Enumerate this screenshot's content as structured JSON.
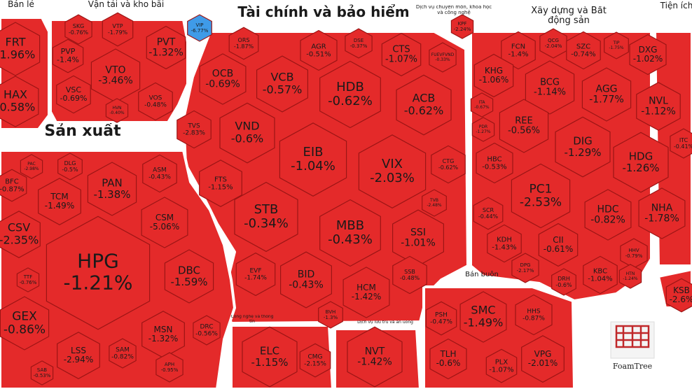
{
  "chart_data": {
    "type": "treemap",
    "color": "#e42a2a",
    "logo": "FoamTree",
    "groups": [
      {
        "name": "Bán lẻ",
        "categories": [
          "FRT",
          "HAX"
        ],
        "values": [
          -1.96,
          -0.58
        ],
        "value_labels": [
          "-1.96%",
          "-0.58%"
        ]
      },
      {
        "name": "Vận tải và kho bãi",
        "categories": [
          "SKG",
          "VTP",
          "PVP",
          "PVT",
          "VTO",
          "VSC",
          "VOS",
          "HVN",
          "VIP"
        ],
        "values": [
          -0.76,
          -1.79,
          -1.4,
          -1.32,
          -3.46,
          -0.69,
          -0.48,
          -0.4,
          -6.77
        ],
        "value_labels": [
          "-0.76%",
          "-1.79%",
          "-1.4%",
          "-1.32%",
          "-3.46%",
          "-0.69%",
          "-0.48%",
          "-0.40%",
          "-6.77%"
        ],
        "colors": [
          "#e42a2a",
          "#e42a2a",
          "#e42a2a",
          "#e42a2a",
          "#e42a2a",
          "#e42a2a",
          "#e42a2a",
          "#e42a2a",
          "#3f9be8"
        ]
      },
      {
        "name": "Tài chính và bảo hiểm",
        "categories": [
          "ORS",
          "AGR",
          "DSE",
          "CTS",
          "OCB",
          "VCB",
          "HDB",
          "ACB",
          "FUEVFVND",
          "VND",
          "EIB",
          "VIX",
          "CTG",
          "TVS",
          "FTS",
          "STB",
          "MBB",
          "SSI",
          "TVB",
          "EVF",
          "BID",
          "HCM",
          "SSB",
          "BVH"
        ],
        "values": [
          -1.87,
          -0.51,
          -0.37,
          -1.07,
          -0.69,
          -0.57,
          -0.62,
          -0.62,
          -0.33,
          -0.6,
          -1.04,
          -2.03,
          -0.62,
          -2.83,
          -1.15,
          -0.34,
          -0.43,
          -1.01,
          -2.48,
          -1.74,
          -0.43,
          -1.42,
          -0.48,
          -1.3
        ],
        "value_labels": [
          "-1.87%",
          "-0.51%",
          "-0.37%",
          "-1.07%",
          "-0.69%",
          "-0.57%",
          "-0.62%",
          "-0.62%",
          "-0.33%",
          "-0.6%",
          "-1.04%",
          "-2.03%",
          "-0.62%",
          "-2.83%",
          "-1.15%",
          "-0.34%",
          "-0.43%",
          "-1.01%",
          "-2.48%",
          "-1.74%",
          "-0.43%",
          "-1.42%",
          "-0.48%",
          "-1.3%"
        ]
      },
      {
        "name": "Dịch vụ chuyên môn, khoa học và công nghệ",
        "categories": [
          "KPF"
        ],
        "values": [
          -2.24
        ],
        "value_labels": [
          "-2.24%"
        ]
      },
      {
        "name": "Xây dựng và Bất động sản",
        "categories": [
          "FCN",
          "QCG",
          "SZC",
          "TIP",
          "DXG",
          "KHG",
          "BCG",
          "AGG",
          "NVL",
          "ITA",
          "REE",
          "PDR",
          "DIG",
          "HDG",
          "HBC",
          "PC1",
          "HDC",
          "NHA",
          "SCR",
          "KDH",
          "CII",
          "DPG",
          "KBC",
          "HHV",
          "DRH",
          "HTN"
        ],
        "values": [
          -1.4,
          -2.04,
          -0.74,
          -1.75,
          -1.02,
          -1.06,
          -1.14,
          -1.77,
          -1.12,
          -0.67,
          -0.56,
          -1.27,
          -1.29,
          -1.26,
          -0.53,
          -2.53,
          -0.82,
          -1.78,
          -0.44,
          -1.43,
          -0.61,
          -2.17,
          -1.04,
          -0.79,
          -0.6,
          -1.24
        ],
        "value_labels": [
          "-1.4%",
          "-2.04%",
          "-0.74%",
          "-1.75%",
          "-1.02%",
          "-1.06%",
          "-1.14%",
          "-1.77%",
          "-1.12%",
          "-0.67%",
          "-0.56%",
          "-1.27%",
          "-1.29%",
          "-1.26%",
          "-0.53%",
          "-2.53%",
          "-0.82%",
          "-1.78%",
          "-0.44%",
          "-1.43%",
          "-0.61%",
          "-2.17%",
          "-1.04%",
          "-0.79%",
          "-0.6%",
          "-1.24%"
        ]
      },
      {
        "name": "Tiện ích",
        "categories": [
          "ITC",
          "KSB"
        ],
        "values": [
          -0.41,
          -2.6
        ],
        "value_labels": [
          "-0.41%",
          "-2.6%"
        ]
      },
      {
        "name": "Sản xuất",
        "categories": [
          "PAC",
          "DLG",
          "BFC",
          "TCM",
          "PAN",
          "ASM",
          "CSV",
          "CSM",
          "HPG",
          "DBC",
          "TTF",
          "GEX",
          "MSN",
          "DRC",
          "LSS",
          "SAM",
          "APH",
          "SAB"
        ],
        "values": [
          -2.98,
          -0.5,
          -0.87,
          -1.49,
          -1.38,
          -0.43,
          -2.35,
          -5.06,
          -1.21,
          -1.59,
          -0.76,
          -0.86,
          -1.32,
          -0.56,
          -2.94,
          -0.82,
          -0.95,
          -0.53
        ],
        "value_labels": [
          "-2.98%",
          "-0.5%",
          "-0.87%",
          "-1.49%",
          "-1.38%",
          "-0.43%",
          "-2.35%",
          "-5.06%",
          "-1.21%",
          "-1.59%",
          "-0.76%",
          "-0.86%",
          "-1.32%",
          "-0.56%",
          "-2.94%",
          "-0.82%",
          "-0.95%",
          "-0.53%"
        ]
      },
      {
        "name": "Công nghệ và thông tin",
        "categories": [
          "ELC",
          "CMG"
        ],
        "values": [
          -1.15,
          -2.15
        ],
        "value_labels": [
          "-1.15%",
          "-2.15%"
        ]
      },
      {
        "name": "Dịch vụ lưu trú và ăn uống",
        "categories": [
          "NVT"
        ],
        "values": [
          -1.42
        ],
        "value_labels": [
          "-1.42%"
        ]
      },
      {
        "name": "Bán buôn",
        "categories": [
          "PSH",
          "SMC",
          "HHS",
          "TLH",
          "PLX",
          "VPG"
        ],
        "values": [
          -0.47,
          -1.49,
          -0.87,
          -0.6,
          -1.07,
          -2.01
        ],
        "value_labels": [
          "-0.47%",
          "-1.49%",
          "-0.87%",
          "-0.6%",
          "-1.07%",
          "-2.01%"
        ]
      }
    ]
  }
}
